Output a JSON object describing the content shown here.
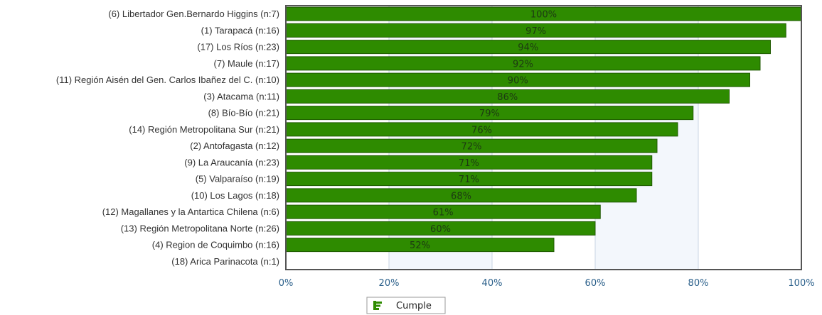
{
  "chart_data": {
    "type": "bar",
    "orientation": "horizontal",
    "categories": [
      "(6) Libertador Gen.Bernardo Higgins (n:7)",
      "(1) Tarapacá (n:16)",
      "(17) Los Ríos (n:23)",
      "(7) Maule (n:17)",
      "(11) Región Aisén del Gen. Carlos Ibañez del C. (n:10)",
      "(3) Atacama (n:11)",
      "(8) Bío-Bío (n:21)",
      "(14) Región Metropolitana Sur (n:21)",
      "(2) Antofagasta (n:12)",
      "(9) La Araucanía (n:23)",
      "(5) Valparaíso (n:19)",
      "(10) Los Lagos (n:18)",
      "(12) Magallanes y la Antartica Chilena (n:6)",
      "(13) Región Metropolitana Norte (n:26)",
      "(4) Region de Coquimbo (n:16)",
      "(18) Arica Parinacota (n:1)"
    ],
    "series": [
      {
        "name": "Cumple",
        "values": [
          100,
          97,
          94,
          92,
          90,
          86,
          79,
          76,
          72,
          71,
          71,
          68,
          61,
          60,
          52,
          null
        ],
        "labels": [
          "100%",
          "97%",
          "94%",
          "92%",
          "90%",
          "86%",
          "79%",
          "76%",
          "72%",
          "71%",
          "71%",
          "68%",
          "61%",
          "60%",
          "52%",
          ""
        ]
      }
    ],
    "x_ticks": [
      "0%",
      "20%",
      "40%",
      "60%",
      "80%",
      "100%"
    ],
    "xlim": [
      0,
      100
    ],
    "grid": true,
    "legend_position": "bottom",
    "colors": {
      "bar_fill": "#2e8b00",
      "bar_stroke": "#1f5a00",
      "grid_line": "#c9d6e3",
      "band_fill": "#f3f7fc",
      "axis_frame": "#555555"
    }
  }
}
